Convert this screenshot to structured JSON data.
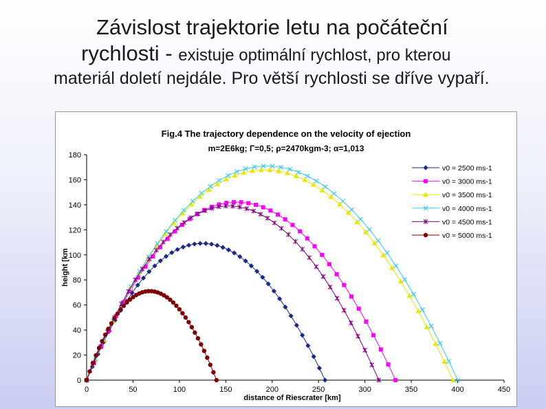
{
  "slide": {
    "title_line1": "Závislost trajektorie letu na počáteční",
    "title_line2_big": "rychlosti - ",
    "title_line2_small": "existuje optimální rychlost, pro kterou",
    "title_line3": "materiál doletí nejdále. Pro větší rychlosti se dříve vypaří."
  },
  "chart_data": {
    "type": "line",
    "title": "Fig.4 The trajectory dependence on the velocity of ejection",
    "subtitle": "m=2E6kg; Γ=0,5; ρ=2470kgm-3; α=1,013",
    "xlabel": "distance of Riescrater [km]",
    "ylabel": "height [km",
    "xlim": [
      0,
      450
    ],
    "ylim": [
      0,
      180
    ],
    "xticks": [
      "0",
      "50",
      "100",
      "150",
      "200",
      "250",
      "300",
      "350",
      "400",
      "450"
    ],
    "yticks": [
      "0",
      "20",
      "40",
      "60",
      "80",
      "100",
      "120",
      "140",
      "160",
      "180"
    ],
    "grid": false,
    "legend_position": "top-right",
    "series": [
      {
        "name": "v0 = 2500 ms-1",
        "color": "#1a2a8a",
        "marker": "diamond",
        "range": 257,
        "peak": 106
      },
      {
        "name": "v0 = 3000 ms-1",
        "color": "#ff00ff",
        "marker": "square",
        "range": 333,
        "peak": 138
      },
      {
        "name": "v0 = 3500 ms-1",
        "color": "#e8e800",
        "marker": "triangle",
        "range": 395,
        "peak": 163
      },
      {
        "name": "v0 = 4000 ms-1",
        "color": "#33ccee",
        "marker": "x",
        "range": 400,
        "peak": 166
      },
      {
        "name": "v0 = 4500 ms-1",
        "color": "#800080",
        "marker": "star",
        "range": 315,
        "peak": 135
      },
      {
        "name": "v0 = 5000 ms-1",
        "color": "#800000",
        "marker": "circle",
        "range": 140,
        "peak": 69
      }
    ]
  }
}
